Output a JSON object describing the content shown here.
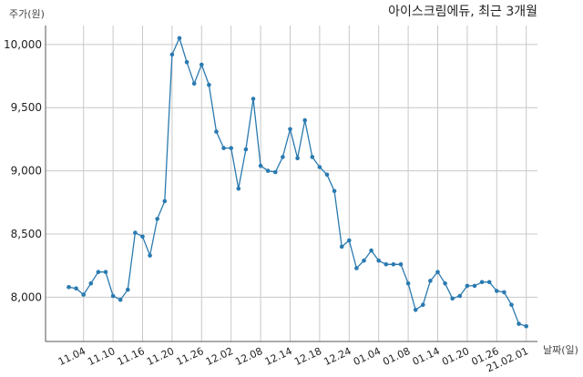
{
  "chart_data": {
    "type": "line",
    "title": "아이스크림에듀, 최근 3개월",
    "ylabel": "주가(원)",
    "xlabel": "날짜(일)",
    "ylim": [
      7650,
      10150
    ],
    "yticks": [
      8000,
      8500,
      9000,
      9500,
      10000
    ],
    "ytick_labels": [
      "8,000",
      "8,500",
      "9,000",
      "9,500",
      "10,000"
    ],
    "xticks": [
      {
        "label": "11.04",
        "index": 2
      },
      {
        "label": "11.10",
        "index": 6
      },
      {
        "label": "11.16",
        "index": 10
      },
      {
        "label": "11.20",
        "index": 14
      },
      {
        "label": "11.26",
        "index": 18
      },
      {
        "label": "12.02",
        "index": 22
      },
      {
        "label": "12.08",
        "index": 26
      },
      {
        "label": "12.14",
        "index": 30
      },
      {
        "label": "12.18",
        "index": 34
      },
      {
        "label": "12.24",
        "index": 38
      },
      {
        "label": "01.04",
        "index": 42
      },
      {
        "label": "01.08",
        "index": 46
      },
      {
        "label": "01.14",
        "index": 50
      },
      {
        "label": "01.20",
        "index": 54
      },
      {
        "label": "01.26",
        "index": 58
      },
      {
        "label": "21.02.01",
        "index": 62
      }
    ],
    "grid": true,
    "color": "#2a7ab0",
    "series": [
      {
        "values": [
          8080,
          8070,
          8020,
          8110,
          8200,
          8200,
          8010,
          7980,
          8060,
          8510,
          8480,
          8330,
          8620,
          8760,
          9920,
          10050,
          9860,
          9690,
          9840,
          9680,
          9310,
          9180,
          9180,
          8860,
          9170,
          9570,
          9040,
          9000,
          8990,
          9110,
          9330,
          9100,
          9400,
          9110,
          9030,
          8970,
          8840,
          8400,
          8450,
          8230,
          8290,
          8370,
          8290,
          8260,
          8260,
          8260,
          8110,
          7900,
          7940,
          8130,
          8200,
          8110,
          7990,
          8010,
          8090,
          8090,
          8120,
          8120,
          8050,
          8040,
          7940,
          7790,
          7770
        ]
      }
    ]
  }
}
